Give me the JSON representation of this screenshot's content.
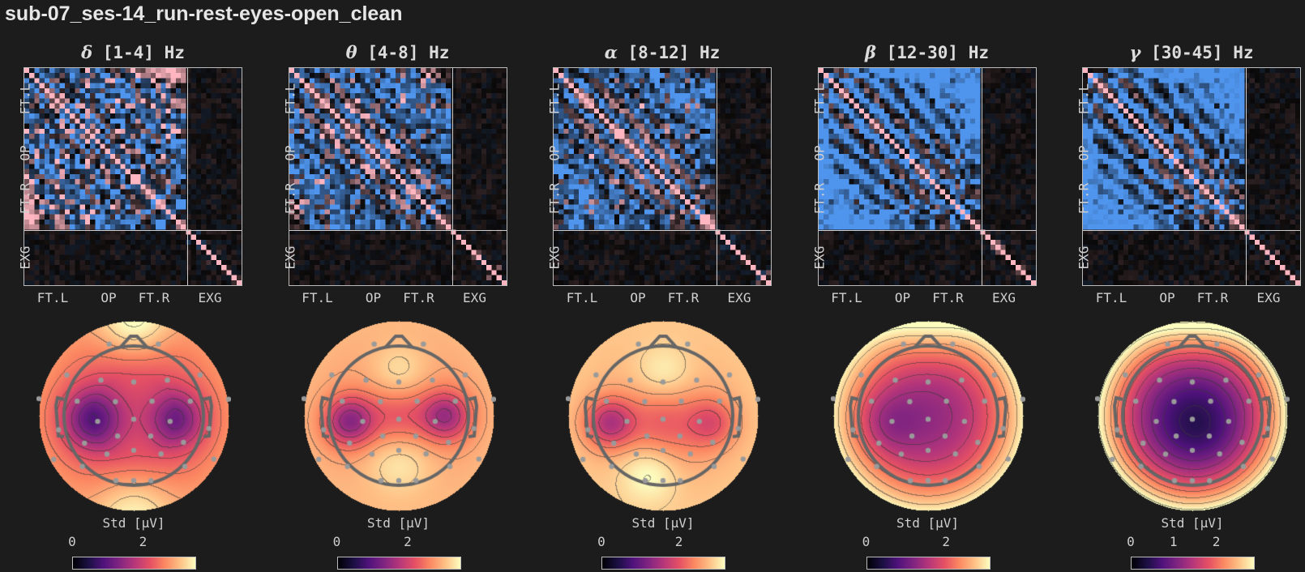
{
  "title": "sub-07_ses-14_run-rest-eyes-open_clean",
  "chart_data": [
    {
      "type": "heatmap+topomap",
      "band_symbol": "δ",
      "band_label": "[1-4] Hz",
      "matrix_xticks": [
        "FT.L",
        "OP",
        "FT.R",
        "EXG"
      ],
      "matrix_yticks": [
        "FT.L",
        "OP",
        "FT.R",
        "EXG"
      ],
      "colorbar_label": "Std [μV]",
      "colorbar_ticks": [
        "0",
        "2"
      ],
      "colorbar_range": [
        0,
        3.5
      ],
      "colormap": "magma",
      "matrix_colors": {
        "positive": "#ffb6c1",
        "negative": "#4f95ee",
        "zero": "#000000"
      }
    },
    {
      "type": "heatmap+topomap",
      "band_symbol": "θ",
      "band_label": "[4-8] Hz",
      "matrix_xticks": [
        "FT.L",
        "OP",
        "FT.R",
        "EXG"
      ],
      "matrix_yticks": [
        "FT.L",
        "OP",
        "FT.R",
        "EXG"
      ],
      "colorbar_label": "Std [μV]",
      "colorbar_ticks": [
        "0",
        "2"
      ],
      "colorbar_range": [
        0,
        3.5
      ],
      "colormap": "magma",
      "matrix_colors": {
        "positive": "#ffb6c1",
        "negative": "#4f95ee",
        "zero": "#000000"
      }
    },
    {
      "type": "heatmap+topomap",
      "band_symbol": "α",
      "band_label": "[8-12] Hz",
      "matrix_xticks": [
        "FT.L",
        "OP",
        "FT.R",
        "EXG"
      ],
      "matrix_yticks": [
        "FT.L",
        "OP",
        "FT.R",
        "EXG"
      ],
      "colorbar_label": "Std [μV]",
      "colorbar_ticks": [
        "0",
        "2"
      ],
      "colorbar_range": [
        0,
        3.2
      ],
      "colormap": "magma",
      "matrix_colors": {
        "positive": "#ffb6c1",
        "negative": "#4f95ee",
        "zero": "#000000"
      }
    },
    {
      "type": "heatmap+topomap",
      "band_symbol": "β",
      "band_label": "[12-30] Hz",
      "matrix_xticks": [
        "FT.L",
        "OP",
        "FT.R",
        "EXG"
      ],
      "matrix_yticks": [
        "FT.L",
        "OP",
        "FT.R",
        "EXG"
      ],
      "colorbar_label": "Std [μV]",
      "colorbar_ticks": [
        "0",
        "2"
      ],
      "colorbar_range": [
        0,
        3.1
      ],
      "colormap": "magma",
      "matrix_colors": {
        "positive": "#ffb6c1",
        "negative": "#4f95ee",
        "zero": "#000000"
      }
    },
    {
      "type": "heatmap+topomap",
      "band_symbol": "γ",
      "band_label": "[30-45] Hz",
      "matrix_xticks": [
        "FT.L",
        "OP",
        "FT.R",
        "EXG"
      ],
      "matrix_yticks": [
        "FT.L",
        "OP",
        "FT.R",
        "EXG"
      ],
      "colorbar_label": "Std [μV]",
      "colorbar_ticks": [
        "0",
        "1",
        "2"
      ],
      "colorbar_range": [
        0,
        2.9
      ],
      "colormap": "magma",
      "matrix_colors": {
        "positive": "#ffb6c1",
        "negative": "#4f95ee",
        "zero": "#000000"
      }
    }
  ]
}
